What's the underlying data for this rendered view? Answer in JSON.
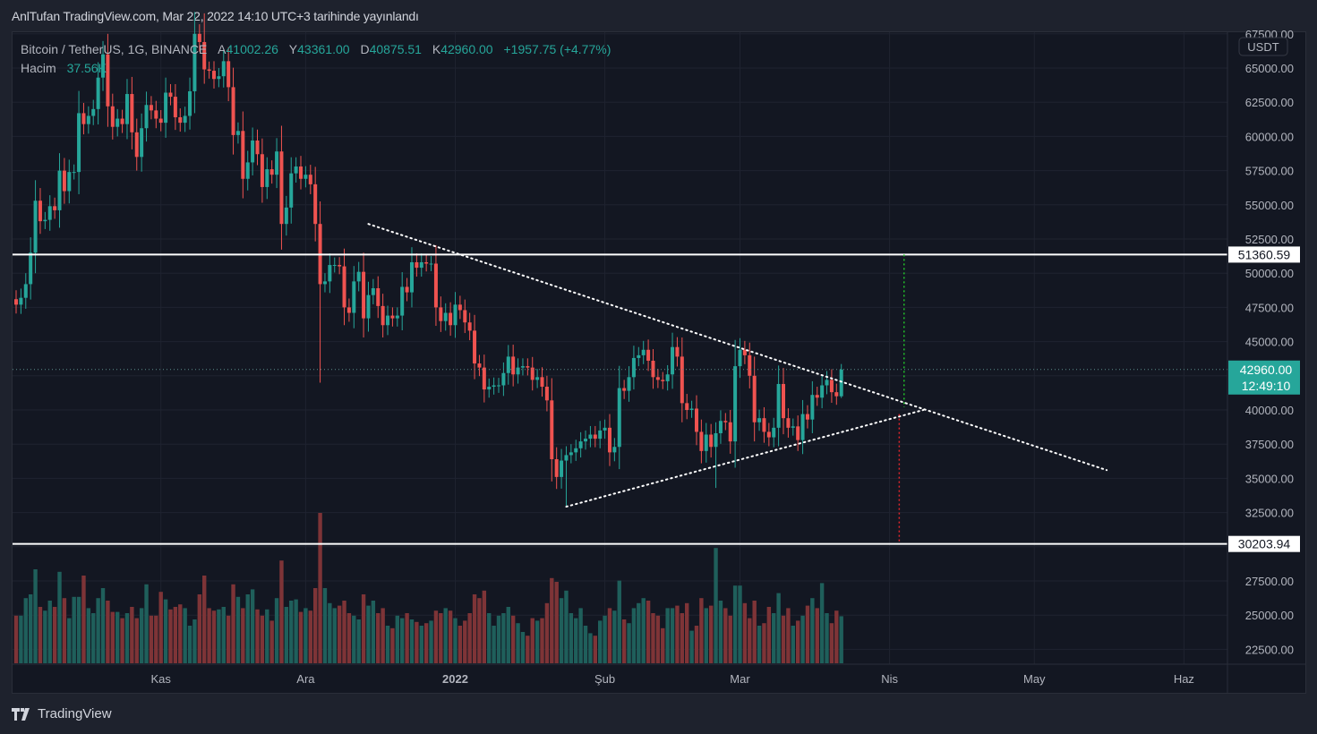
{
  "header": {
    "published": "AnlTufan TradingView.com, Mar 22, 2022 14:10 UTC+3 tarihinde yayınlandı"
  },
  "legend": {
    "symbol": "Bitcoin / TetherUS, 1G, BINANCE",
    "open_label": "A",
    "open": "41002.26",
    "high_label": "Y",
    "high": "43361.00",
    "low_label": "D",
    "low": "40875.51",
    "close_label": "K",
    "close": "42960.00",
    "change": "+1957.75 (+4.77%)",
    "volume_label": "Hacim",
    "volume": "37.56K"
  },
  "price_axis": {
    "currency": "USDT",
    "last_price": "42960.00",
    "countdown": "12:49:10"
  },
  "footer": {
    "brand": "TradingView"
  },
  "colors": {
    "up": "#26a69a",
    "down": "#ef5350",
    "vol_up": "#1f5f5b",
    "vol_down": "#7e3437",
    "bg": "#131722"
  },
  "chart_data": {
    "type": "candlestick",
    "start_date": "2021-10-02",
    "interval": "1D",
    "first_open": 48100,
    "closes_k": [
      47.7,
      48.2,
      49.2,
      51.5,
      55.3,
      53.8,
      53.9,
      54.9,
      54.6,
      57.5,
      56.0,
      57.4,
      57.4,
      61.7,
      60.9,
      61.5,
      62.0,
      64.3,
      66.0,
      62.2,
      60.7,
      61.3,
      60.9,
      63.1,
      60.3,
      58.5,
      60.6,
      62.3,
      61.9,
      61.3,
      61.0,
      63.2,
      62.9,
      61.4,
      61.0,
      61.5,
      63.3,
      67.5,
      66.9,
      64.9,
      64.8,
      64.2,
      64.4,
      65.5,
      63.6,
      60.1,
      60.4,
      56.9,
      58.1,
      59.7,
      58.7,
      56.3,
      57.6,
      57.2,
      58.9,
      53.6,
      54.8,
      57.3,
      57.8,
      56.9,
      57.2,
      56.5,
      53.6,
      49.2,
      49.4,
      50.6,
      50.6,
      50.5,
      47.5,
      47.1,
      49.4,
      50.1,
      46.7,
      48.4,
      48.9,
      47.6,
      46.2,
      46.9,
      46.7,
      46.9,
      49.0,
      48.6,
      50.8,
      50.4,
      50.8,
      50.7,
      50.7,
      47.5,
      46.5,
      47.1,
      46.2,
      47.7,
      47.3,
      46.4,
      45.8,
      43.4,
      43.1,
      41.5,
      41.7,
      41.8,
      41.8,
      42.7,
      43.9,
      42.6,
      43.1,
      43.2,
      43.1,
      42.2,
      42.4,
      41.7,
      40.7,
      36.4,
      35.1,
      36.3,
      36.7,
      36.9,
      37.2,
      37.7,
      37.9,
      38.2,
      37.9,
      38.5,
      38.7,
      36.9,
      37.3,
      41.6,
      41.4,
      42.4,
      43.8,
      44.0,
      44.4,
      43.6,
      42.4,
      42.2,
      42.1,
      42.6,
      44.6,
      43.9,
      40.5,
      40.0,
      40.1,
      38.4,
      37.0,
      38.2,
      37.3,
      38.3,
      39.2,
      39.1,
      37.7,
      43.2,
      44.4,
      44.0,
      42.5,
      39.1,
      39.4,
      38.4,
      38.0,
      38.7,
      41.9,
      39.4,
      38.7,
      38.8,
      37.8,
      39.7,
      39.3,
      41.1,
      40.9,
      41.8,
      42.2,
      41.3,
      41.00226,
      42.96
    ],
    "volumes_k": [
      38,
      38,
      52,
      55,
      75,
      45,
      42,
      50,
      45,
      73,
      52,
      36,
      53,
      53,
      70,
      44,
      40,
      52,
      60,
      50,
      41,
      41,
      36,
      40,
      45,
      36,
      44,
      63,
      38,
      38,
      57,
      51,
      43,
      45,
      47,
      44,
      30,
      35,
      55,
      70,
      44,
      42,
      43,
      45,
      38,
      63,
      53,
      44,
      55,
      59,
      43,
      38,
      43,
      34,
      52,
      82,
      45,
      50,
      51,
      41,
      44,
      42,
      60,
      120,
      60,
      48,
      44,
      46,
      50,
      40,
      38,
      35,
      55,
      46,
      50,
      40,
      44,
      30,
      28,
      38,
      36,
      40,
      35,
      33,
      30,
      32,
      34,
      42,
      40,
      44,
      42,
      36,
      30,
      34,
      40,
      55,
      52,
      58,
      40,
      30,
      38,
      40,
      45,
      38,
      32,
      25,
      22,
      36,
      34,
      36,
      48,
      68,
      65,
      52,
      58,
      40,
      36,
      44,
      30,
      24,
      22,
      34,
      38,
      44,
      42,
      66,
      35,
      32,
      44,
      48,
      52,
      50,
      40,
      38,
      28,
      44,
      44,
      46,
      40,
      48,
      26,
      30,
      52,
      44,
      46,
      92,
      50,
      44,
      38,
      62,
      62,
      48,
      36,
      50,
      30,
      32,
      45,
      40,
      56,
      38,
      44,
      30,
      34,
      38,
      46,
      52,
      44,
      64,
      40,
      32,
      42,
      37.56
    ],
    "wick_overrides": {
      "2021-11-10": {
        "high": 69000
      },
      "2021-12-04": {
        "low": 42000
      },
      "2022-01-24": {
        "low": 33000
      },
      "2022-02-24": {
        "low": 34300
      },
      "2022-03-22": {
        "high": 43361,
        "low": 40875.51
      }
    },
    "y_ticks": [
      "67500.00",
      "65000.00",
      "62500.00",
      "60000.00",
      "57500.00",
      "55000.00",
      "52500.00",
      "50000.00",
      "47500.00",
      "45000.00",
      "40000.00",
      "37500.00",
      "35000.00",
      "32500.00",
      "27500.00",
      "25000.00",
      "22500.00"
    ],
    "x_ticks": [
      {
        "label": "Kas",
        "date": "2021-11-01"
      },
      {
        "label": "Ara",
        "date": "2021-12-01"
      },
      {
        "label": "2022",
        "date": "2022-01-01"
      },
      {
        "label": "Şub",
        "date": "2022-02-01"
      },
      {
        "label": "Mar",
        "date": "2022-03-01"
      },
      {
        "label": "Nis",
        "date": "2022-04-01"
      },
      {
        "label": "May",
        "date": "2022-05-01"
      },
      {
        "label": "Haz",
        "date": "2022-06-01"
      }
    ],
    "horizontal_levels": [
      {
        "price": 51360.59,
        "label": "51360.59"
      },
      {
        "price": 30203.94,
        "label": "30203.94"
      }
    ],
    "trendlines": [
      {
        "name": "descending-trendline",
        "from": {
          "date": "2021-12-14",
          "price": 53600
        },
        "to": {
          "date": "2022-05-16",
          "price": 35600
        }
      },
      {
        "name": "ascending-trendline",
        "from": {
          "date": "2022-01-24",
          "price": 32930
        },
        "to": {
          "date": "2022-04-08",
          "price": 40000
        }
      }
    ],
    "projections": [
      {
        "name": "target-up-projection",
        "date": "2022-04-04",
        "from": 51360.59,
        "to": 40200,
        "color": "#22c32a"
      },
      {
        "name": "target-down-projection",
        "date": "2022-04-03",
        "from": 39700,
        "to": 30203.94,
        "color": "#e0262b"
      }
    ]
  }
}
